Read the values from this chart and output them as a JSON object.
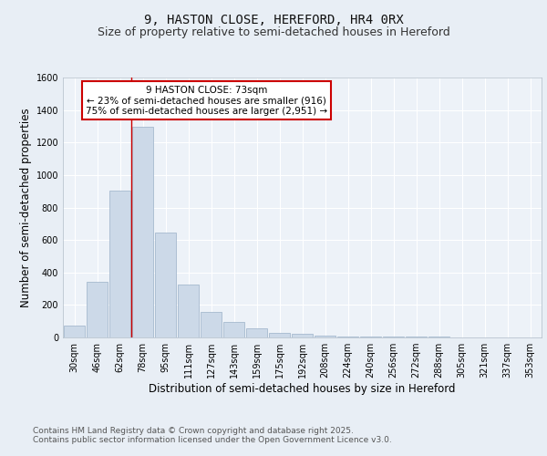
{
  "title": "9, HASTON CLOSE, HEREFORD, HR4 0RX",
  "subtitle": "Size of property relative to semi-detached houses in Hereford",
  "xlabel": "Distribution of semi-detached houses by size in Hereford",
  "ylabel": "Number of semi-detached properties",
  "categories": [
    "30sqm",
    "46sqm",
    "62sqm",
    "78sqm",
    "95sqm",
    "111sqm",
    "127sqm",
    "143sqm",
    "159sqm",
    "175sqm",
    "192sqm",
    "208sqm",
    "224sqm",
    "240sqm",
    "256sqm",
    "272sqm",
    "288sqm",
    "305sqm",
    "321sqm",
    "337sqm",
    "353sqm"
  ],
  "values": [
    75,
    345,
    905,
    1295,
    645,
    325,
    155,
    95,
    55,
    30,
    20,
    10,
    8,
    5,
    4,
    3,
    3,
    2,
    2,
    1,
    1
  ],
  "bar_color": "#ccd9e8",
  "bar_edge_color": "#9ab0c8",
  "highlight_line_color": "#cc0000",
  "highlight_bar_index": 2,
  "annotation_title": "9 HASTON CLOSE: 73sqm",
  "annotation_line1": "← 23% of semi-detached houses are smaller (916)",
  "annotation_line2": "75% of semi-detached houses are larger (2,951) →",
  "annotation_box_color": "#ffffff",
  "annotation_box_edge_color": "#cc0000",
  "ylim": [
    0,
    1600
  ],
  "yticks": [
    0,
    200,
    400,
    600,
    800,
    1000,
    1200,
    1400,
    1600
  ],
  "footer_line1": "Contains HM Land Registry data © Crown copyright and database right 2025.",
  "footer_line2": "Contains public sector information licensed under the Open Government Licence v3.0.",
  "bg_color": "#e8eef5",
  "plot_bg_color": "#edf2f8",
  "grid_color": "#ffffff",
  "title_fontsize": 10,
  "subtitle_fontsize": 9,
  "axis_label_fontsize": 8.5,
  "tick_fontsize": 7,
  "footer_fontsize": 6.5,
  "annotation_fontsize": 7.5
}
